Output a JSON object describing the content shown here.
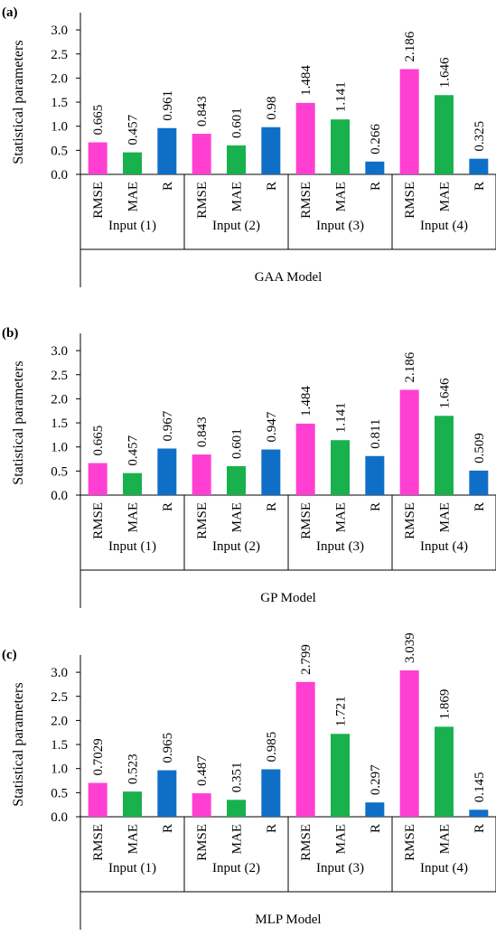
{
  "chart_data": [
    {
      "type": "bar",
      "panel_label": "(a)",
      "title": "",
      "ylabel": "Statistical parameters",
      "ylim": [
        0,
        3.0
      ],
      "yticks": [
        "0.0",
        "0.5",
        "1.0",
        "1.5",
        "2.0",
        "2.5",
        "3.0"
      ],
      "categories": [
        "RMSE",
        "MAE",
        "R"
      ],
      "groups": [
        "Input (1)",
        "Input (2)",
        "Input (3)",
        "Input (4)"
      ],
      "group_axis_label": "GAA Model",
      "bars": [
        {
          "group": "Input (1)",
          "category": "RMSE",
          "value": 0.665,
          "label": "0.665"
        },
        {
          "group": "Input (1)",
          "category": "MAE",
          "value": 0.457,
          "label": "0.457"
        },
        {
          "group": "Input (1)",
          "category": "R",
          "value": 0.961,
          "label": "0.961"
        },
        {
          "group": "Input (2)",
          "category": "RMSE",
          "value": 0.843,
          "label": "0.843"
        },
        {
          "group": "Input (2)",
          "category": "MAE",
          "value": 0.601,
          "label": "0.601"
        },
        {
          "group": "Input (2)",
          "category": "R",
          "value": 0.98,
          "label": "0.98"
        },
        {
          "group": "Input (3)",
          "category": "RMSE",
          "value": 1.484,
          "label": "1.484"
        },
        {
          "group": "Input (3)",
          "category": "MAE",
          "value": 1.141,
          "label": "1.141"
        },
        {
          "group": "Input (3)",
          "category": "R",
          "value": 0.266,
          "label": "0.266"
        },
        {
          "group": "Input (4)",
          "category": "RMSE",
          "value": 2.186,
          "label": "2.186"
        },
        {
          "group": "Input (4)",
          "category": "MAE",
          "value": 1.646,
          "label": "1.646"
        },
        {
          "group": "Input (4)",
          "category": "R",
          "value": 0.325,
          "label": "0.325"
        }
      ]
    },
    {
      "type": "bar",
      "panel_label": "(b)",
      "title": "",
      "ylabel": "Statistical parameters",
      "ylim": [
        0,
        3.0
      ],
      "yticks": [
        "0.0",
        "0.5",
        "1.0",
        "1.5",
        "2.0",
        "2.5",
        "3.0"
      ],
      "categories": [
        "RMSE",
        "MAE",
        "R"
      ],
      "groups": [
        "Input (1)",
        "Input (2)",
        "Input (3)",
        "Input (4)"
      ],
      "group_axis_label": "GP Model",
      "bars": [
        {
          "group": "Input (1)",
          "category": "RMSE",
          "value": 0.665,
          "label": "0.665"
        },
        {
          "group": "Input (1)",
          "category": "MAE",
          "value": 0.457,
          "label": "0.457"
        },
        {
          "group": "Input (1)",
          "category": "R",
          "value": 0.967,
          "label": "0.967"
        },
        {
          "group": "Input (2)",
          "category": "RMSE",
          "value": 0.843,
          "label": "0.843"
        },
        {
          "group": "Input (2)",
          "category": "MAE",
          "value": 0.601,
          "label": "0.601"
        },
        {
          "group": "Input (2)",
          "category": "R",
          "value": 0.947,
          "label": "0.947"
        },
        {
          "group": "Input (3)",
          "category": "RMSE",
          "value": 1.484,
          "label": "1.484"
        },
        {
          "group": "Input (3)",
          "category": "MAE",
          "value": 1.141,
          "label": "1.141"
        },
        {
          "group": "Input (3)",
          "category": "R",
          "value": 0.811,
          "label": "0.811"
        },
        {
          "group": "Input (4)",
          "category": "RMSE",
          "value": 2.186,
          "label": "2.186"
        },
        {
          "group": "Input (4)",
          "category": "MAE",
          "value": 1.646,
          "label": "1.646"
        },
        {
          "group": "Input (4)",
          "category": "R",
          "value": 0.509,
          "label": "0.509"
        }
      ]
    },
    {
      "type": "bar",
      "panel_label": "(c)",
      "title": "",
      "ylabel": "Statistical parameters",
      "ylim": [
        0,
        3.0
      ],
      "yticks": [
        "0.0",
        "0.5",
        "1.0",
        "1.5",
        "2.0",
        "2.5",
        "3.0"
      ],
      "categories": [
        "RMSE",
        "MAE",
        "R"
      ],
      "groups": [
        "Input (1)",
        "Input (2)",
        "Input (3)",
        "Input (4)"
      ],
      "group_axis_label": "MLP Model",
      "bars": [
        {
          "group": "Input (1)",
          "category": "RMSE",
          "value": 0.7029,
          "label": "0.7029"
        },
        {
          "group": "Input (1)",
          "category": "MAE",
          "value": 0.523,
          "label": "0.523"
        },
        {
          "group": "Input (1)",
          "category": "R",
          "value": 0.965,
          "label": "0.965"
        },
        {
          "group": "Input (2)",
          "category": "RMSE",
          "value": 0.487,
          "label": "0.487"
        },
        {
          "group": "Input (2)",
          "category": "MAE",
          "value": 0.351,
          "label": "0.351"
        },
        {
          "group": "Input (2)",
          "category": "R",
          "value": 0.985,
          "label": "0.985"
        },
        {
          "group": "Input (3)",
          "category": "RMSE",
          "value": 2.799,
          "label": "2.799"
        },
        {
          "group": "Input (3)",
          "category": "MAE",
          "value": 1.721,
          "label": "1.721"
        },
        {
          "group": "Input (3)",
          "category": "R",
          "value": 0.297,
          "label": "0.297"
        },
        {
          "group": "Input (4)",
          "category": "RMSE",
          "value": 3.039,
          "label": "3.039"
        },
        {
          "group": "Input (4)",
          "category": "MAE",
          "value": 1.869,
          "label": "1.869"
        },
        {
          "group": "Input (4)",
          "category": "R",
          "value": 0.145,
          "label": "0.145"
        }
      ]
    }
  ],
  "colors": {
    "RMSE": "#ff3fd2",
    "MAE": "#19b14d",
    "R": "#0f6fc7",
    "axis": "#000000"
  }
}
